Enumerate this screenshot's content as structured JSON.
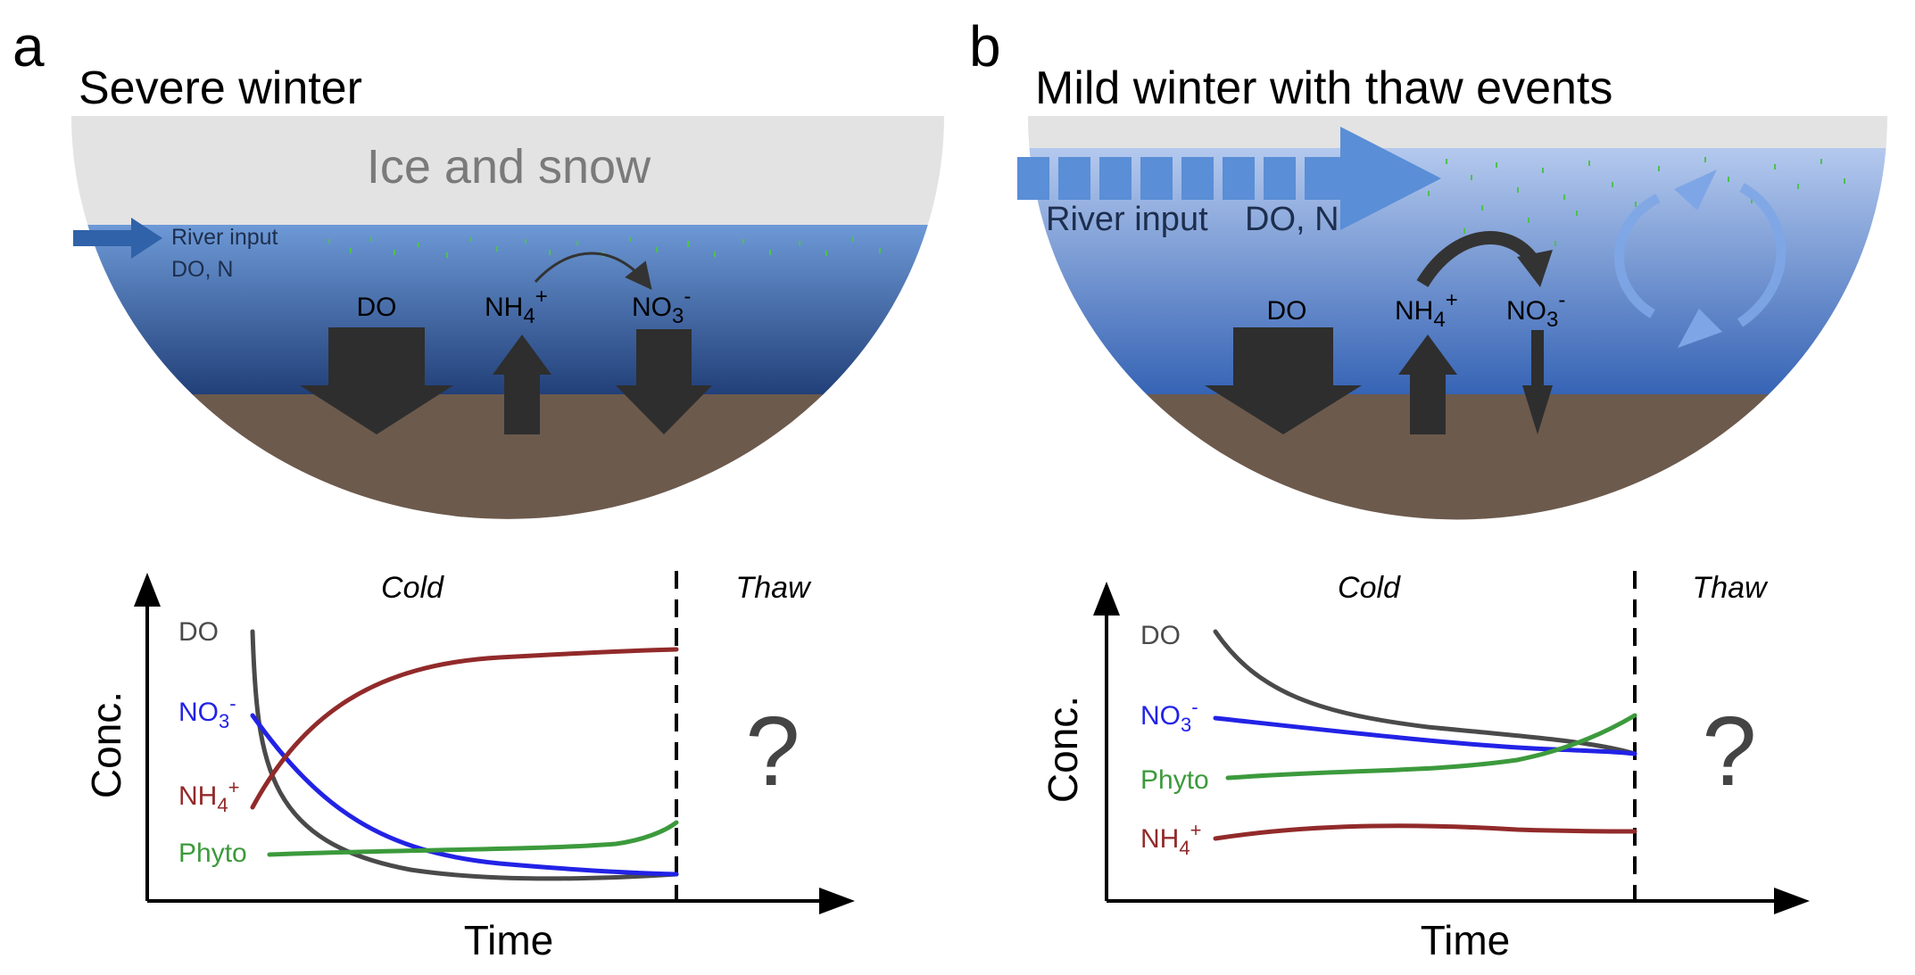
{
  "colors": {
    "ice": "#e3e3e3",
    "water_top": "#6d99d6",
    "water_bottom": "#213f78",
    "sediment": "#6c5a4d",
    "flux_arrow": "#2e2e2e",
    "river_arrow_a": "#2f62a8",
    "river_arrow_b": "#5a8ed6",
    "do": "#4a4a4a",
    "no3": "#2222e6",
    "nh4": "#922a2a",
    "phyto": "#3c9a3c"
  },
  "panel_a": {
    "letter": "a",
    "title": "Severe winter",
    "ice_label": "Ice and snow",
    "river_label_1": "River input",
    "river_label_2": "DO, N",
    "do_label": "DO",
    "nh4": {
      "base": "NH",
      "sub": "4",
      "sup": "+"
    },
    "no3": {
      "base": "NO",
      "sub": "3",
      "sup": "-"
    },
    "plot": {
      "phase_cold": "Cold",
      "phase_thaw": "Thaw",
      "question": "?",
      "xlabel": "Time",
      "ylabel": "Conc.",
      "series_labels": {
        "do": "DO",
        "no3_base": "NO",
        "no3_sub": "3",
        "no3_sup": "-",
        "nh4_base": "NH",
        "nh4_sub": "4",
        "nh4_sup": "+",
        "phyto": "Phyto"
      }
    }
  },
  "panel_b": {
    "letter": "b",
    "title": "Mild winter with thaw events",
    "river_label_1": "River input",
    "river_label_2": "DO, N",
    "do_label": "DO",
    "nh4": {
      "base": "NH",
      "sub": "4",
      "sup": "+"
    },
    "no3": {
      "base": "NO",
      "sub": "3",
      "sup": "-"
    },
    "plot": {
      "phase_cold": "Cold",
      "phase_thaw": "Thaw",
      "question": "?",
      "xlabel": "Time",
      "ylabel": "Conc.",
      "series_labels": {
        "do": "DO",
        "no3_base": "NO",
        "no3_sub": "3",
        "no3_sup": "-",
        "nh4_base": "NH",
        "nh4_sub": "4",
        "nh4_sup": "+",
        "phyto": "Phyto"
      }
    }
  }
}
